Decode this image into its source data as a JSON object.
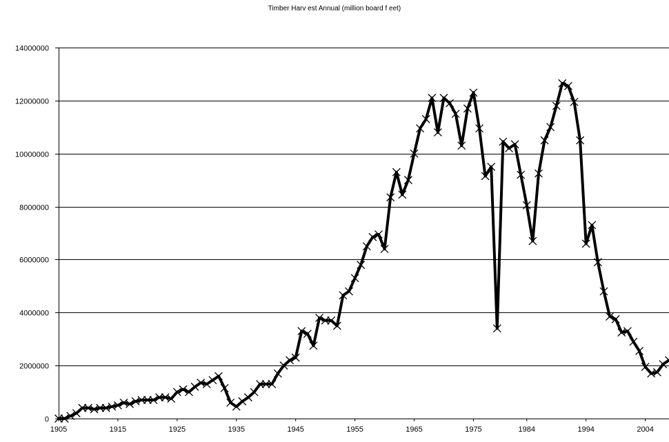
{
  "chart_data": {
    "type": "line",
    "title": "Timber Harv est Annual (million board f eet)",
    "xlabel": "",
    "ylabel": "",
    "xlim": [
      1905,
      2008
    ],
    "ylim": [
      0,
      14000000
    ],
    "y_ticks": [
      0,
      2000000,
      4000000,
      6000000,
      8000000,
      10000000,
      12000000,
      14000000
    ],
    "y_tick_labels": [
      "0",
      "2000000",
      "4000000",
      "6000000",
      "8000000",
      "10000000",
      "12000000",
      "14000000"
    ],
    "x_ticks": [
      1905,
      1915,
      1925,
      1935,
      1945,
      1955,
      1965,
      1975,
      1984,
      1994,
      2004
    ],
    "x_tick_labels": [
      "1905",
      "1915",
      "1925",
      "1935",
      "1945",
      "1955",
      "1965",
      "1975",
      "1984",
      "1994",
      "2004"
    ],
    "grid": "horizontal",
    "legend": "none",
    "series": [
      {
        "color": "#000000",
        "marker": "x",
        "x": [
          1905,
          1906,
          1907,
          1908,
          1909,
          1910,
          1911,
          1912,
          1913,
          1914,
          1915,
          1916,
          1917,
          1918,
          1919,
          1920,
          1921,
          1922,
          1923,
          1924,
          1925,
          1926,
          1927,
          1928,
          1929,
          1930,
          1931,
          1932,
          1933,
          1934,
          1935,
          1936,
          1937,
          1938,
          1939,
          1940,
          1941,
          1942,
          1943,
          1944,
          1945,
          1946,
          1947,
          1948,
          1949,
          1950,
          1951,
          1952,
          1953,
          1954,
          1955,
          1956,
          1957,
          1958,
          1959,
          1960,
          1961,
          1962,
          1963,
          1964,
          1965,
          1966,
          1967,
          1968,
          1969,
          1970,
          1971,
          1972,
          1973,
          1974,
          1975,
          1976,
          1977,
          1978,
          1979,
          1980,
          1981,
          1982,
          1983,
          1984,
          1985,
          1986,
          1987,
          1988,
          1989,
          1990,
          1991,
          1992,
          1993,
          1994,
          1995,
          1996,
          1997,
          1998,
          1999,
          2000,
          2001,
          2002,
          2003,
          2004,
          2005,
          2006,
          2007,
          2008
        ],
        "values": [
          0,
          0,
          100000,
          200000,
          400000,
          400000,
          350000,
          400000,
          400000,
          450000,
          500000,
          600000,
          550000,
          650000,
          700000,
          700000,
          700000,
          800000,
          800000,
          750000,
          1000000,
          1100000,
          1000000,
          1200000,
          1350000,
          1300000,
          1450000,
          1600000,
          1150000,
          600000,
          450000,
          650000,
          800000,
          1000000,
          1300000,
          1300000,
          1300000,
          1700000,
          2000000,
          2200000,
          2300000,
          3300000,
          3200000,
          2750000,
          3800000,
          3700000,
          3700000,
          3500000,
          4650000,
          4800000,
          5300000,
          5800000,
          6500000,
          6850000,
          6950000,
          6400000,
          8350000,
          9300000,
          8450000,
          9000000,
          10000000,
          10950000,
          11300000,
          12100000,
          10800000,
          12100000,
          11900000,
          11500000,
          10300000,
          11700000,
          12300000,
          10950000,
          9150000,
          9500000,
          3400000,
          10450000,
          10200000,
          10350000,
          9200000,
          8050000,
          6700000,
          9250000,
          10500000,
          11000000,
          11800000,
          12650000,
          12550000,
          11950000,
          10500000,
          6600000,
          7300000,
          5900000,
          4800000,
          3850000,
          3750000,
          3250000,
          3300000,
          2900000,
          2550000,
          1950000,
          1700000,
          1750000,
          2050000,
          2200000
        ]
      }
    ]
  }
}
